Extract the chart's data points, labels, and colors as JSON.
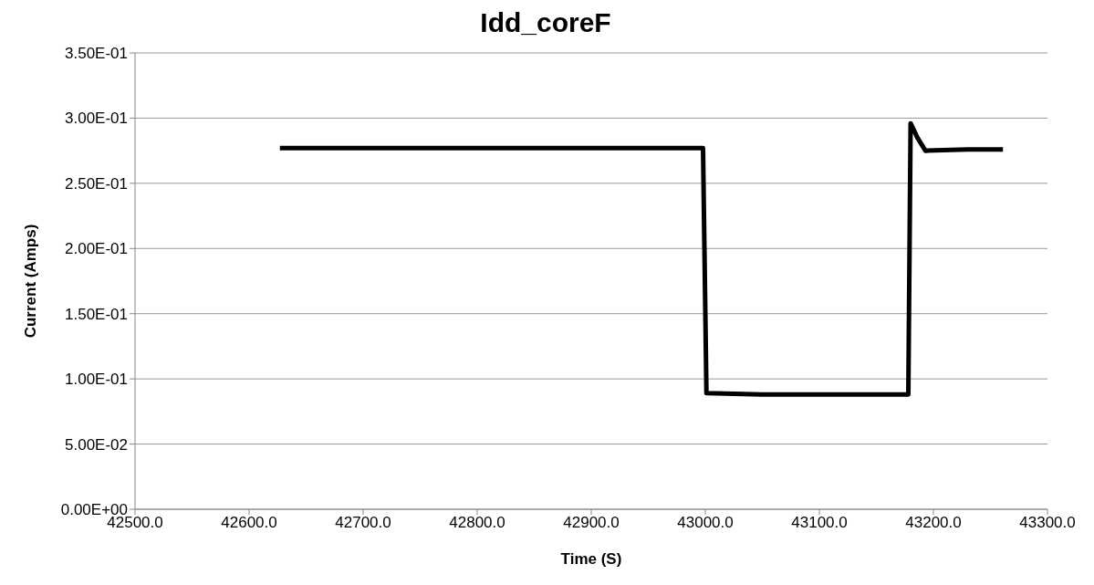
{
  "chart_data": {
    "type": "line",
    "title": "Idd_coreF",
    "xlabel": "Time (S)",
    "ylabel": "Current (Amps)",
    "series": [
      {
        "color": "#000000",
        "x": [
          42627,
          42700,
          42800,
          42900,
          42998,
          43001,
          43050,
          43100,
          43178,
          43180,
          43186,
          43193,
          43230,
          43261
        ],
        "values": [
          0.277,
          0.277,
          0.277,
          0.277,
          0.277,
          0.089,
          0.088,
          0.088,
          0.088,
          0.296,
          0.285,
          0.275,
          0.276,
          0.276
        ]
      }
    ],
    "xlim": [
      42500,
      43300
    ],
    "xticks": [
      {
        "value": 42500,
        "label": "42500.0"
      },
      {
        "value": 42600,
        "label": "42600.0"
      },
      {
        "value": 42700,
        "label": "42700.0"
      },
      {
        "value": 42800,
        "label": "42800.0"
      },
      {
        "value": 42900,
        "label": "42900.0"
      },
      {
        "value": 43000,
        "label": "43000.0"
      },
      {
        "value": 43100,
        "label": "43100.0"
      },
      {
        "value": 43200,
        "label": "43200.0"
      },
      {
        "value": 43300,
        "label": "43300.0"
      }
    ],
    "ylim": [
      0,
      0.35
    ],
    "yticks": [
      {
        "value": 0,
        "label": "0.00E+00"
      },
      {
        "value": 0.05,
        "label": "5.00E-02"
      },
      {
        "value": 0.1,
        "label": "1.00E-01"
      },
      {
        "value": 0.15,
        "label": "1.50E-01"
      },
      {
        "value": 0.2,
        "label": "2.00E-01"
      },
      {
        "value": 0.25,
        "label": "2.50E-01"
      },
      {
        "value": 0.3,
        "label": "3.00E-01"
      },
      {
        "value": 0.35,
        "label": "3.50E-01"
      }
    ],
    "grid": "y",
    "legend": false,
    "marker": "none",
    "line_style": "solid"
  }
}
